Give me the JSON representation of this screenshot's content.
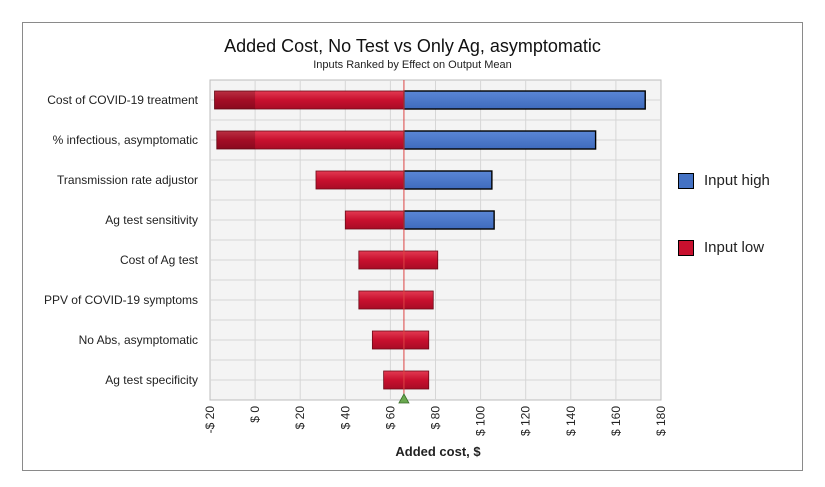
{
  "chart_data": {
    "type": "bar",
    "title": "Added Cost, No Test vs Only Ag, asymptomatic",
    "subtitle": "Inputs Ranked by Effect on Output Mean",
    "xlabel": "Added cost, $",
    "xlim": [
      -20,
      180
    ],
    "xticks": [
      -20,
      0,
      20,
      40,
      60,
      80,
      100,
      120,
      140,
      160,
      180
    ],
    "xtick_labels": [
      "-$ 20",
      "$ 0",
      "$ 20",
      "$ 40",
      "$ 60",
      "$ 80",
      "$ 100",
      "$ 120",
      "$ 140",
      "$ 160",
      "$ 180"
    ],
    "baseline": 66,
    "grid": true,
    "legend_position": "right",
    "categories": [
      "Cost of COVID-19 treatment",
      "% infectious, asymptomatic",
      "Transmission rate adjustor",
      "Ag test sensitivity",
      "Cost of Ag test",
      "PPV of COVID-19 symptoms",
      "No Abs, asymptomatic",
      "Ag test specificity"
    ],
    "series": [
      {
        "name": "Input high",
        "color": "#4472C4",
        "values": [
          173,
          151,
          105,
          106,
          null,
          null,
          null,
          null
        ]
      },
      {
        "name": "Input low",
        "color": "#C8102E",
        "values": [
          -18,
          -17,
          27,
          40,
          46,
          46,
          52,
          57
        ]
      }
    ],
    "low_side_extents": [
      {
        "low": -18,
        "high": 66
      },
      {
        "low": -17,
        "high": 66
      },
      {
        "low": 27,
        "high": 66
      },
      {
        "low": 40,
        "high": 66
      },
      {
        "low": 46,
        "high": 81
      },
      {
        "low": 46,
        "high": 79
      },
      {
        "low": 52,
        "high": 77
      },
      {
        "low": 57,
        "high": 77
      }
    ]
  }
}
